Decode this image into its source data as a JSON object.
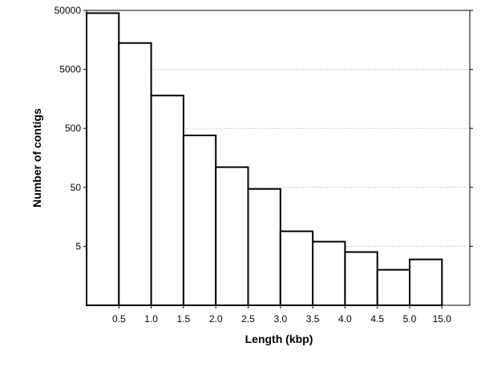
{
  "chart_data": {
    "type": "bar",
    "title": "",
    "xlabel": "Length (kbp)",
    "ylabel": "Number of contigs",
    "y_scale": "log",
    "ylim": [
      0.5,
      50000
    ],
    "grid": "horizontal dotted",
    "legend": "none",
    "bar_color": "#ffffff",
    "edge_color": "#000000",
    "x_tick_labels": [
      "0.5",
      "1.0",
      "1.5",
      "2.0",
      "2.5",
      "3.0",
      "3.5",
      "4.0",
      "4.5",
      "5.0",
      "15.0"
    ],
    "y_tick_labels": [
      "5",
      "50",
      "500",
      "5000",
      "50000"
    ],
    "bins": [
      "0-0.5",
      "0.5-1.0",
      "1.0-1.5",
      "1.5-2.0",
      "2.0-2.5",
      "2.5-3.0",
      "3.0-3.5",
      "3.5-4.0",
      "4.0-4.5",
      "4.5-5.0",
      "5.0-15.0"
    ],
    "values": [
      45000,
      14000,
      1800,
      380,
      110,
      47,
      9,
      6,
      4,
      2,
      3
    ]
  }
}
